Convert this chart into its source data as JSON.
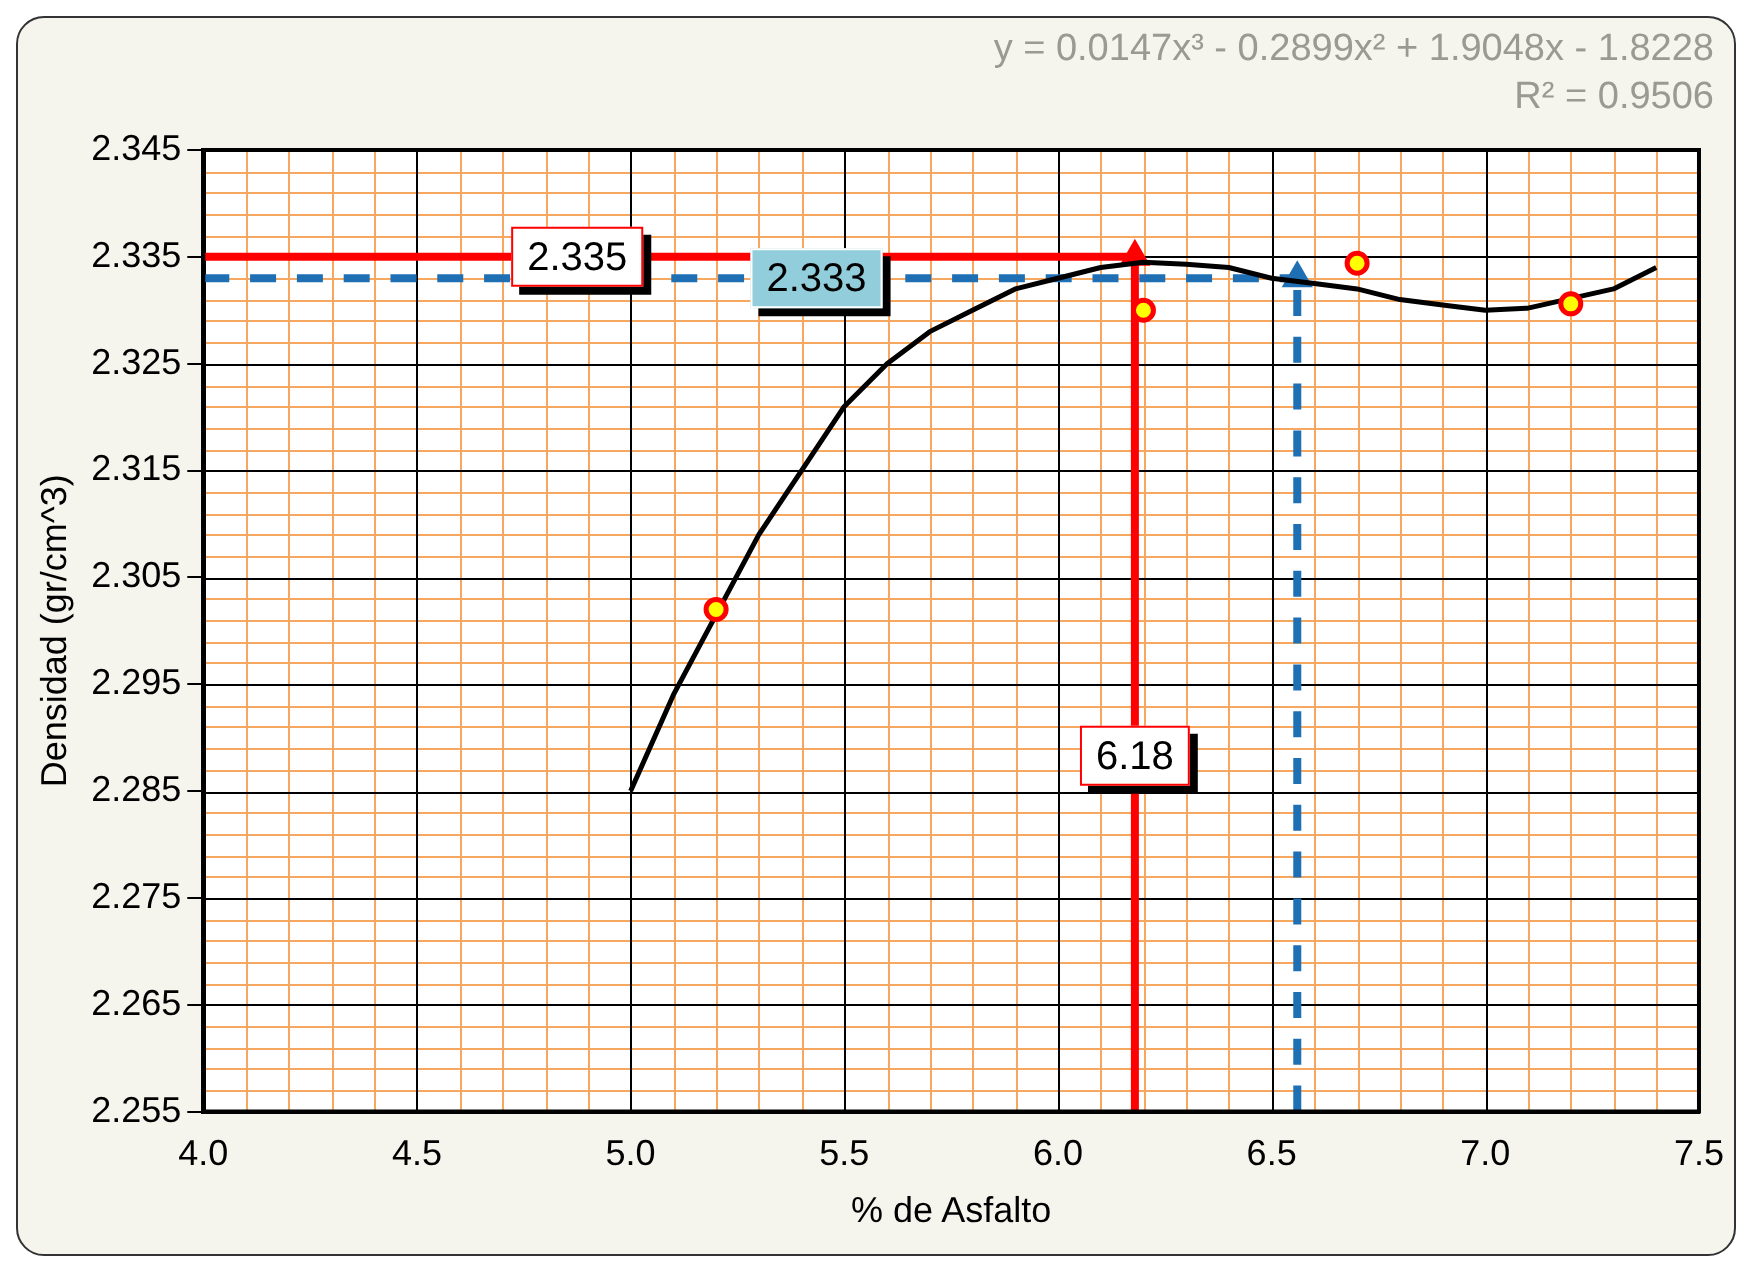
{
  "chart_data": {
    "type": "scatter",
    "xlabel": "% de Asfalto",
    "ylabel": "Densidad (gr/cm^3)",
    "annotations": [
      "y = 0.0147x³ - 0.2899x² + 1.9048x - 1.8228",
      "R² = 0.9506"
    ],
    "series": [
      {
        "color": "#ff0000",
        "marker": "circle",
        "x": [
          5.2,
          6.2,
          6.7,
          7.2
        ],
        "values": [
          2.302,
          2.33,
          2.3344,
          2.3306
        ]
      },
      {
        "type": "line",
        "color": "#000000",
        "marker": "none",
        "x": [
          5.0,
          5.1,
          5.3,
          5.4,
          5.5,
          5.6,
          5.7,
          5.8,
          5.9,
          6.0,
          6.1,
          6.2,
          6.3,
          6.4,
          6.5,
          6.6,
          6.7,
          6.8,
          6.9,
          7.0,
          7.1,
          7.3,
          7.4
        ],
        "values": [
          2.285,
          2.294,
          2.309,
          2.315,
          2.321,
          2.325,
          2.328,
          2.33,
          2.332,
          2.333,
          2.334,
          2.3345,
          2.3343,
          2.334,
          2.333,
          2.3325,
          2.332,
          2.331,
          2.3305,
          2.33,
          2.3302,
          2.332,
          2.334
        ]
      },
      {
        "color": "#ff0000",
        "marker": "triangle",
        "x": [
          6.18
        ],
        "values": [
          2.335
        ]
      },
      {
        "color": "#1f6fb4",
        "marker": "triangle",
        "x": [
          6.56
        ],
        "values": [
          2.333
        ]
      }
    ],
    "ref_lines": [
      {
        "axis": "y",
        "value": 2.335,
        "label": "2.335",
        "color": "#ff0000",
        "line_style": "solid"
      },
      {
        "axis": "x",
        "value": 6.18,
        "label": "6.18",
        "color": "#ff0000",
        "line_style": "solid"
      },
      {
        "axis": "y",
        "value": 2.333,
        "label": "2.333",
        "color": "#1f6fb4",
        "line_style": "dashed"
      },
      {
        "axis": "x",
        "value": 6.56,
        "color": "#1f6fb4",
        "line_style": "dashed"
      }
    ],
    "xlim": [
      4.0,
      7.5
    ],
    "xticks": [
      {
        "value": 4.0,
        "label": "4.0"
      },
      {
        "value": 4.1,
        "label": null
      },
      {
        "value": 4.2,
        "label": null
      },
      {
        "value": 4.3,
        "label": null
      },
      {
        "value": 4.4,
        "label": null
      },
      {
        "value": 4.5,
        "label": "4.5"
      },
      {
        "value": 4.6,
        "label": null
      },
      {
        "value": 4.7,
        "label": null
      },
      {
        "value": 4.8,
        "label": null
      },
      {
        "value": 4.9,
        "label": null
      },
      {
        "value": 5.0,
        "label": "5.0"
      },
      {
        "value": 5.1,
        "label": null
      },
      {
        "value": 5.2,
        "label": null
      },
      {
        "value": 5.3,
        "label": null
      },
      {
        "value": 5.4,
        "label": null
      },
      {
        "value": 5.5,
        "label": "5.5"
      },
      {
        "value": 5.6,
        "label": null
      },
      {
        "value": 5.7,
        "label": null
      },
      {
        "value": 5.8,
        "label": null
      },
      {
        "value": 5.9,
        "label": null
      },
      {
        "value": 6.0,
        "label": "6.0"
      },
      {
        "value": 6.1,
        "label": null
      },
      {
        "value": 6.2,
        "label": null
      },
      {
        "value": 6.3,
        "label": null
      },
      {
        "value": 6.4,
        "label": null
      },
      {
        "value": 6.5,
        "label": "6.5"
      },
      {
        "value": 6.6,
        "label": null
      },
      {
        "value": 6.7,
        "label": null
      },
      {
        "value": 6.8,
        "label": null
      },
      {
        "value": 6.9,
        "label": null
      },
      {
        "value": 7.0,
        "label": "7.0"
      },
      {
        "value": 7.1,
        "label": null
      },
      {
        "value": 7.2,
        "label": null
      },
      {
        "value": 7.3,
        "label": null
      },
      {
        "value": 7.4,
        "label": null
      },
      {
        "value": 7.5,
        "label": "7.5"
      }
    ],
    "ylim": [
      2.255,
      2.345
    ],
    "yticks": [
      2.255,
      {
        "value": 2.257,
        "label": null
      },
      {
        "value": 2.259,
        "label": null
      },
      {
        "value": 2.261,
        "label": null
      },
      {
        "value": 2.263,
        "label": null
      },
      2.265,
      {
        "value": 2.267,
        "label": null
      },
      {
        "value": 2.269,
        "label": null
      },
      {
        "value": 2.271,
        "label": null
      },
      {
        "value": 2.273,
        "label": null
      },
      2.275,
      {
        "value": 2.277,
        "label": null
      },
      {
        "value": 2.279,
        "label": null
      },
      {
        "value": 2.281,
        "label": null
      },
      {
        "value": 2.283,
        "label": null
      },
      2.285,
      {
        "value": 2.287,
        "label": null
      },
      {
        "value": 2.289,
        "label": null
      },
      {
        "value": 2.291,
        "label": null
      },
      {
        "value": 2.293,
        "label": null
      },
      2.295,
      {
        "value": 2.297,
        "label": null
      },
      {
        "value": 2.299,
        "label": null
      },
      {
        "value": 2.301,
        "label": null
      },
      {
        "value": 2.303,
        "label": null
      },
      2.305,
      {
        "value": 2.307,
        "label": null
      },
      {
        "value": 2.309,
        "label": null
      },
      {
        "value": 2.311,
        "label": null
      },
      {
        "value": 2.313,
        "label": null
      },
      2.315,
      {
        "value": 2.317,
        "label": null
      },
      {
        "value": 2.319,
        "label": null
      },
      {
        "value": 2.321,
        "label": null
      },
      {
        "value": 2.323,
        "label": null
      },
      2.325,
      {
        "value": 2.327,
        "label": null
      },
      {
        "value": 2.329,
        "label": null
      },
      {
        "value": 2.331,
        "label": null
      },
      {
        "value": 2.333,
        "label": null
      },
      2.335,
      {
        "value": 2.337,
        "label": null
      },
      {
        "value": 2.339,
        "label": null
      },
      {
        "value": 2.341,
        "label": null
      },
      {
        "value": 2.343,
        "label": null
      },
      2.345
    ],
    "grid": true,
    "legend": false,
    "line_style": "solid"
  }
}
